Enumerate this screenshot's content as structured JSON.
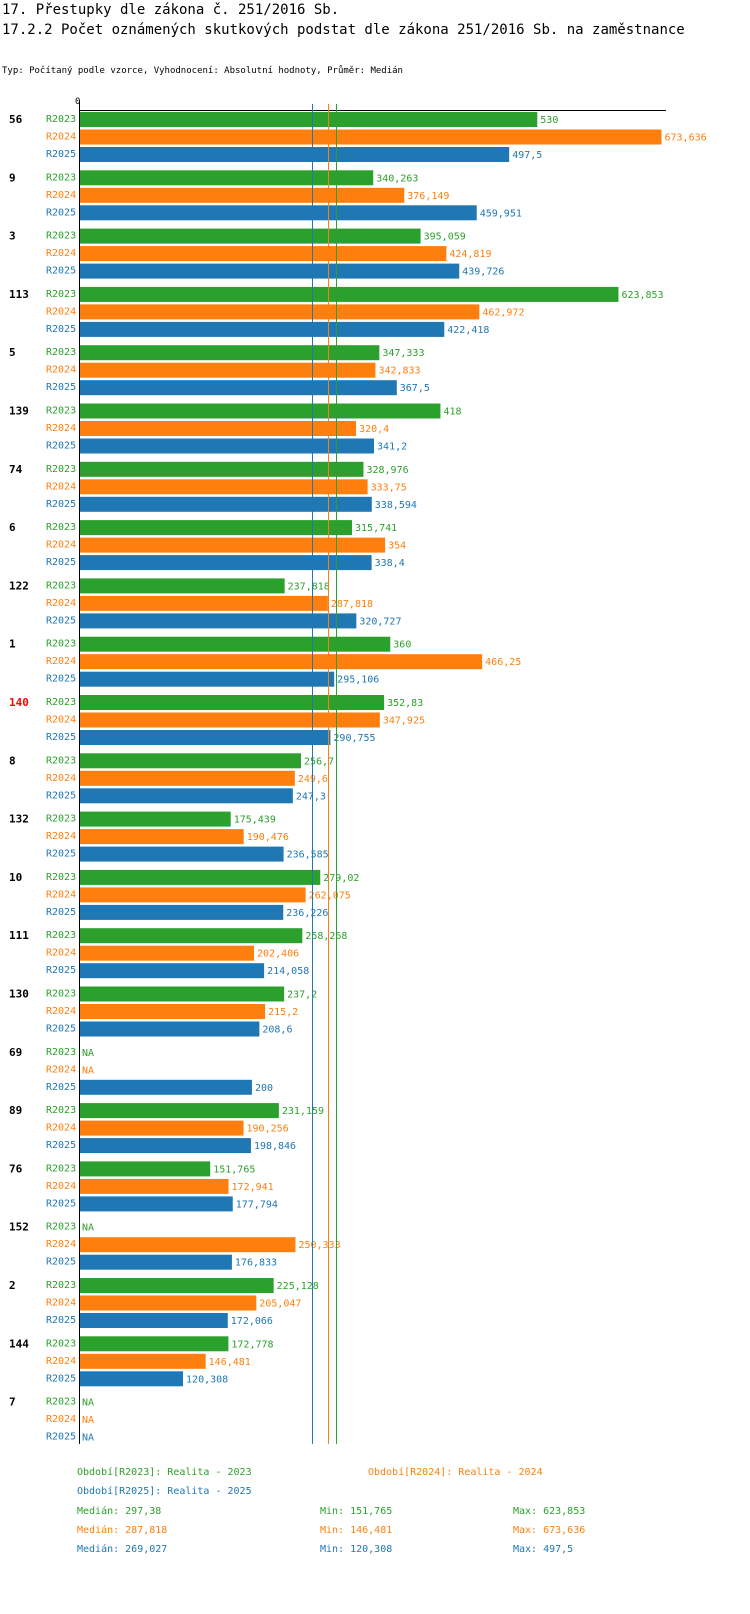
{
  "title": "17. Přestupky dle zákona č. 251/2016 Sb.",
  "subtitle": "17.2.2 Počet oznámených skutkových podstat dle zákona 251/2016 Sb. na zaměstnance",
  "type_line": "Typ: Počítaný podle vzorce, Vyhodnocení: Absolutní hodnoty, Průměr: Medián",
  "colors": {
    "R2023": "#2ca02c",
    "R2024": "#ff7f0e",
    "R2025": "#1f77b4",
    "highlight": "#ff0000",
    "axis": "#000000"
  },
  "chart_data": {
    "type": "bar",
    "orientation": "horizontal",
    "x_tick_label": "0",
    "xlim": [
      0,
      680
    ],
    "series_names": [
      "R2023",
      "R2024",
      "R2025"
    ],
    "highlight_category": "140",
    "categories": [
      {
        "label": "56",
        "values": [
          530,
          673.636,
          497.5
        ],
        "labels": [
          "530",
          "673,636",
          "497,5"
        ]
      },
      {
        "label": "9",
        "values": [
          340.263,
          376.149,
          459.951
        ],
        "labels": [
          "340,263",
          "376,149",
          "459,951"
        ]
      },
      {
        "label": "3",
        "values": [
          395.059,
          424.819,
          439.726
        ],
        "labels": [
          "395,059",
          "424,819",
          "439,726"
        ]
      },
      {
        "label": "113",
        "values": [
          623.853,
          462.972,
          422.418
        ],
        "labels": [
          "623,853",
          "462,972",
          "422,418"
        ]
      },
      {
        "label": "5",
        "values": [
          347.333,
          342.833,
          367.5
        ],
        "labels": [
          "347,333",
          "342,833",
          "367,5"
        ]
      },
      {
        "label": "139",
        "values": [
          418,
          320.4,
          341.2
        ],
        "labels": [
          "418",
          "320,4",
          "341,2"
        ]
      },
      {
        "label": "74",
        "values": [
          328.976,
          333.75,
          338.594
        ],
        "labels": [
          "328,976",
          "333,75",
          "338,594"
        ]
      },
      {
        "label": "6",
        "values": [
          315.741,
          354,
          338.4
        ],
        "labels": [
          "315,741",
          "354",
          "338,4"
        ]
      },
      {
        "label": "122",
        "values": [
          237.818,
          287.818,
          320.727
        ],
        "labels": [
          "237,818",
          "287,818",
          "320,727"
        ]
      },
      {
        "label": "1",
        "values": [
          360,
          466.25,
          295.106
        ],
        "labels": [
          "360",
          "466,25",
          "295,106"
        ]
      },
      {
        "label": "140",
        "values": [
          352.83,
          347.925,
          290.755
        ],
        "labels": [
          "352,83",
          "347,925",
          "290,755"
        ]
      },
      {
        "label": "8",
        "values": [
          256.7,
          249.6,
          247.3
        ],
        "labels": [
          "256,7",
          "249,6",
          "247,3"
        ]
      },
      {
        "label": "132",
        "values": [
          175.439,
          190.476,
          236.585
        ],
        "labels": [
          "175,439",
          "190,476",
          "236,585"
        ]
      },
      {
        "label": "10",
        "values": [
          279.02,
          262.075,
          236.226
        ],
        "labels": [
          "279,02",
          "262,075",
          "236,226"
        ]
      },
      {
        "label": "111",
        "values": [
          258.268,
          202.406,
          214.058
        ],
        "labels": [
          "258,268",
          "202,406",
          "214,058"
        ]
      },
      {
        "label": "130",
        "values": [
          237.2,
          215.2,
          208.6
        ],
        "labels": [
          "237,2",
          "215,2",
          "208,6"
        ]
      },
      {
        "label": "69",
        "values": [
          null,
          null,
          200
        ],
        "labels": [
          "NA",
          "NA",
          "200"
        ]
      },
      {
        "label": "89",
        "values": [
          231.159,
          190.256,
          198.846
        ],
        "labels": [
          "231,159",
          "190,256",
          "198,846"
        ]
      },
      {
        "label": "76",
        "values": [
          151.765,
          172.941,
          177.794
        ],
        "labels": [
          "151,765",
          "172,941",
          "177,794"
        ]
      },
      {
        "label": "152",
        "values": [
          null,
          250.333,
          176.833
        ],
        "labels": [
          "NA",
          "250,333",
          "176,833"
        ]
      },
      {
        "label": "2",
        "values": [
          225.128,
          205.047,
          172.066
        ],
        "labels": [
          "225,128",
          "205,047",
          "172,066"
        ]
      },
      {
        "label": "144",
        "values": [
          172.778,
          146.481,
          120.308
        ],
        "labels": [
          "172,778",
          "146,481",
          "120,308"
        ]
      },
      {
        "label": "7",
        "values": [
          null,
          null,
          null
        ],
        "labels": [
          "NA",
          "NA",
          "NA"
        ]
      }
    ],
    "medians": [
      297.38,
      287.818,
      269.027
    ]
  },
  "legend": {
    "period_2023": "Období[R2023]: Realita - 2023",
    "period_2024": "Období[R2024]: Realita - 2024",
    "period_2025": "Období[R2025]: Realita - 2025",
    "stats": [
      {
        "median": "Medián: 297,38",
        "min": "Min: 151,765",
        "max": "Max: 623,853"
      },
      {
        "median": "Medián: 287,818",
        "min": "Min: 146,481",
        "max": "Max: 673,636"
      },
      {
        "median": "Medián: 269,027",
        "min": "Min: 120,308",
        "max": "Max: 497,5"
      }
    ]
  }
}
